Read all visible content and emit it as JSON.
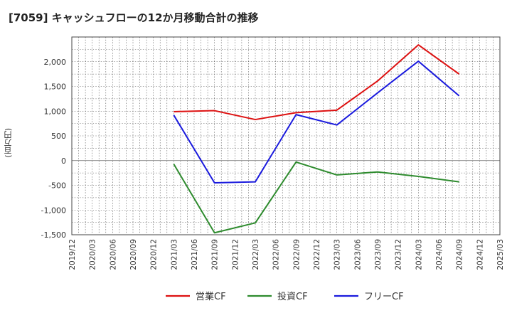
{
  "chart_data": {
    "type": "line",
    "title": "[7059]  キャッシュフローの12か月移動合計の推移",
    "ylabel": "(百万円)",
    "xlabel": "",
    "ylim": [
      -1500,
      2500
    ],
    "yticks": [
      -1500,
      -1000,
      -500,
      0,
      500,
      1000,
      1500,
      2000
    ],
    "ytick_labels": [
      "-1,500",
      "-1,000",
      "-500",
      "0",
      "500",
      "1,000",
      "1,500",
      "2,000"
    ],
    "x_axis_labels": [
      "2019/12",
      "2020/03",
      "2020/06",
      "2020/09",
      "2020/12",
      "2021/03",
      "2021/06",
      "2021/09",
      "2021/12",
      "2022/03",
      "2022/06",
      "2022/09",
      "2022/12",
      "2023/03",
      "2023/06",
      "2023/09",
      "2023/12",
      "2024/03",
      "2024/06",
      "2024/09",
      "2024/12",
      "2025/03"
    ],
    "grid": true,
    "legend_position": "bottom",
    "series": [
      {
        "name": "営業CF",
        "color": "#dd1111",
        "x": [
          "2021/03",
          "2021/09",
          "2022/03",
          "2022/09",
          "2023/03",
          "2023/09",
          "2024/03",
          "2024/09"
        ],
        "values": [
          990,
          1010,
          830,
          970,
          1020,
          1610,
          2340,
          1750
        ]
      },
      {
        "name": "投資CF",
        "color": "#2e8b2e",
        "x": [
          "2021/03",
          "2021/09",
          "2022/03",
          "2022/09",
          "2023/03",
          "2023/09",
          "2024/03",
          "2024/09"
        ],
        "values": [
          -70,
          -1460,
          -1260,
          -30,
          -290,
          -230,
          -320,
          -430
        ]
      },
      {
        "name": "フリーCF",
        "color": "#1a1add",
        "x": [
          "2021/03",
          "2021/09",
          "2022/03",
          "2022/09",
          "2023/03",
          "2023/09",
          "2024/03",
          "2024/09"
        ],
        "values": [
          920,
          -450,
          -430,
          930,
          720,
          1370,
          2010,
          1310
        ]
      }
    ]
  }
}
